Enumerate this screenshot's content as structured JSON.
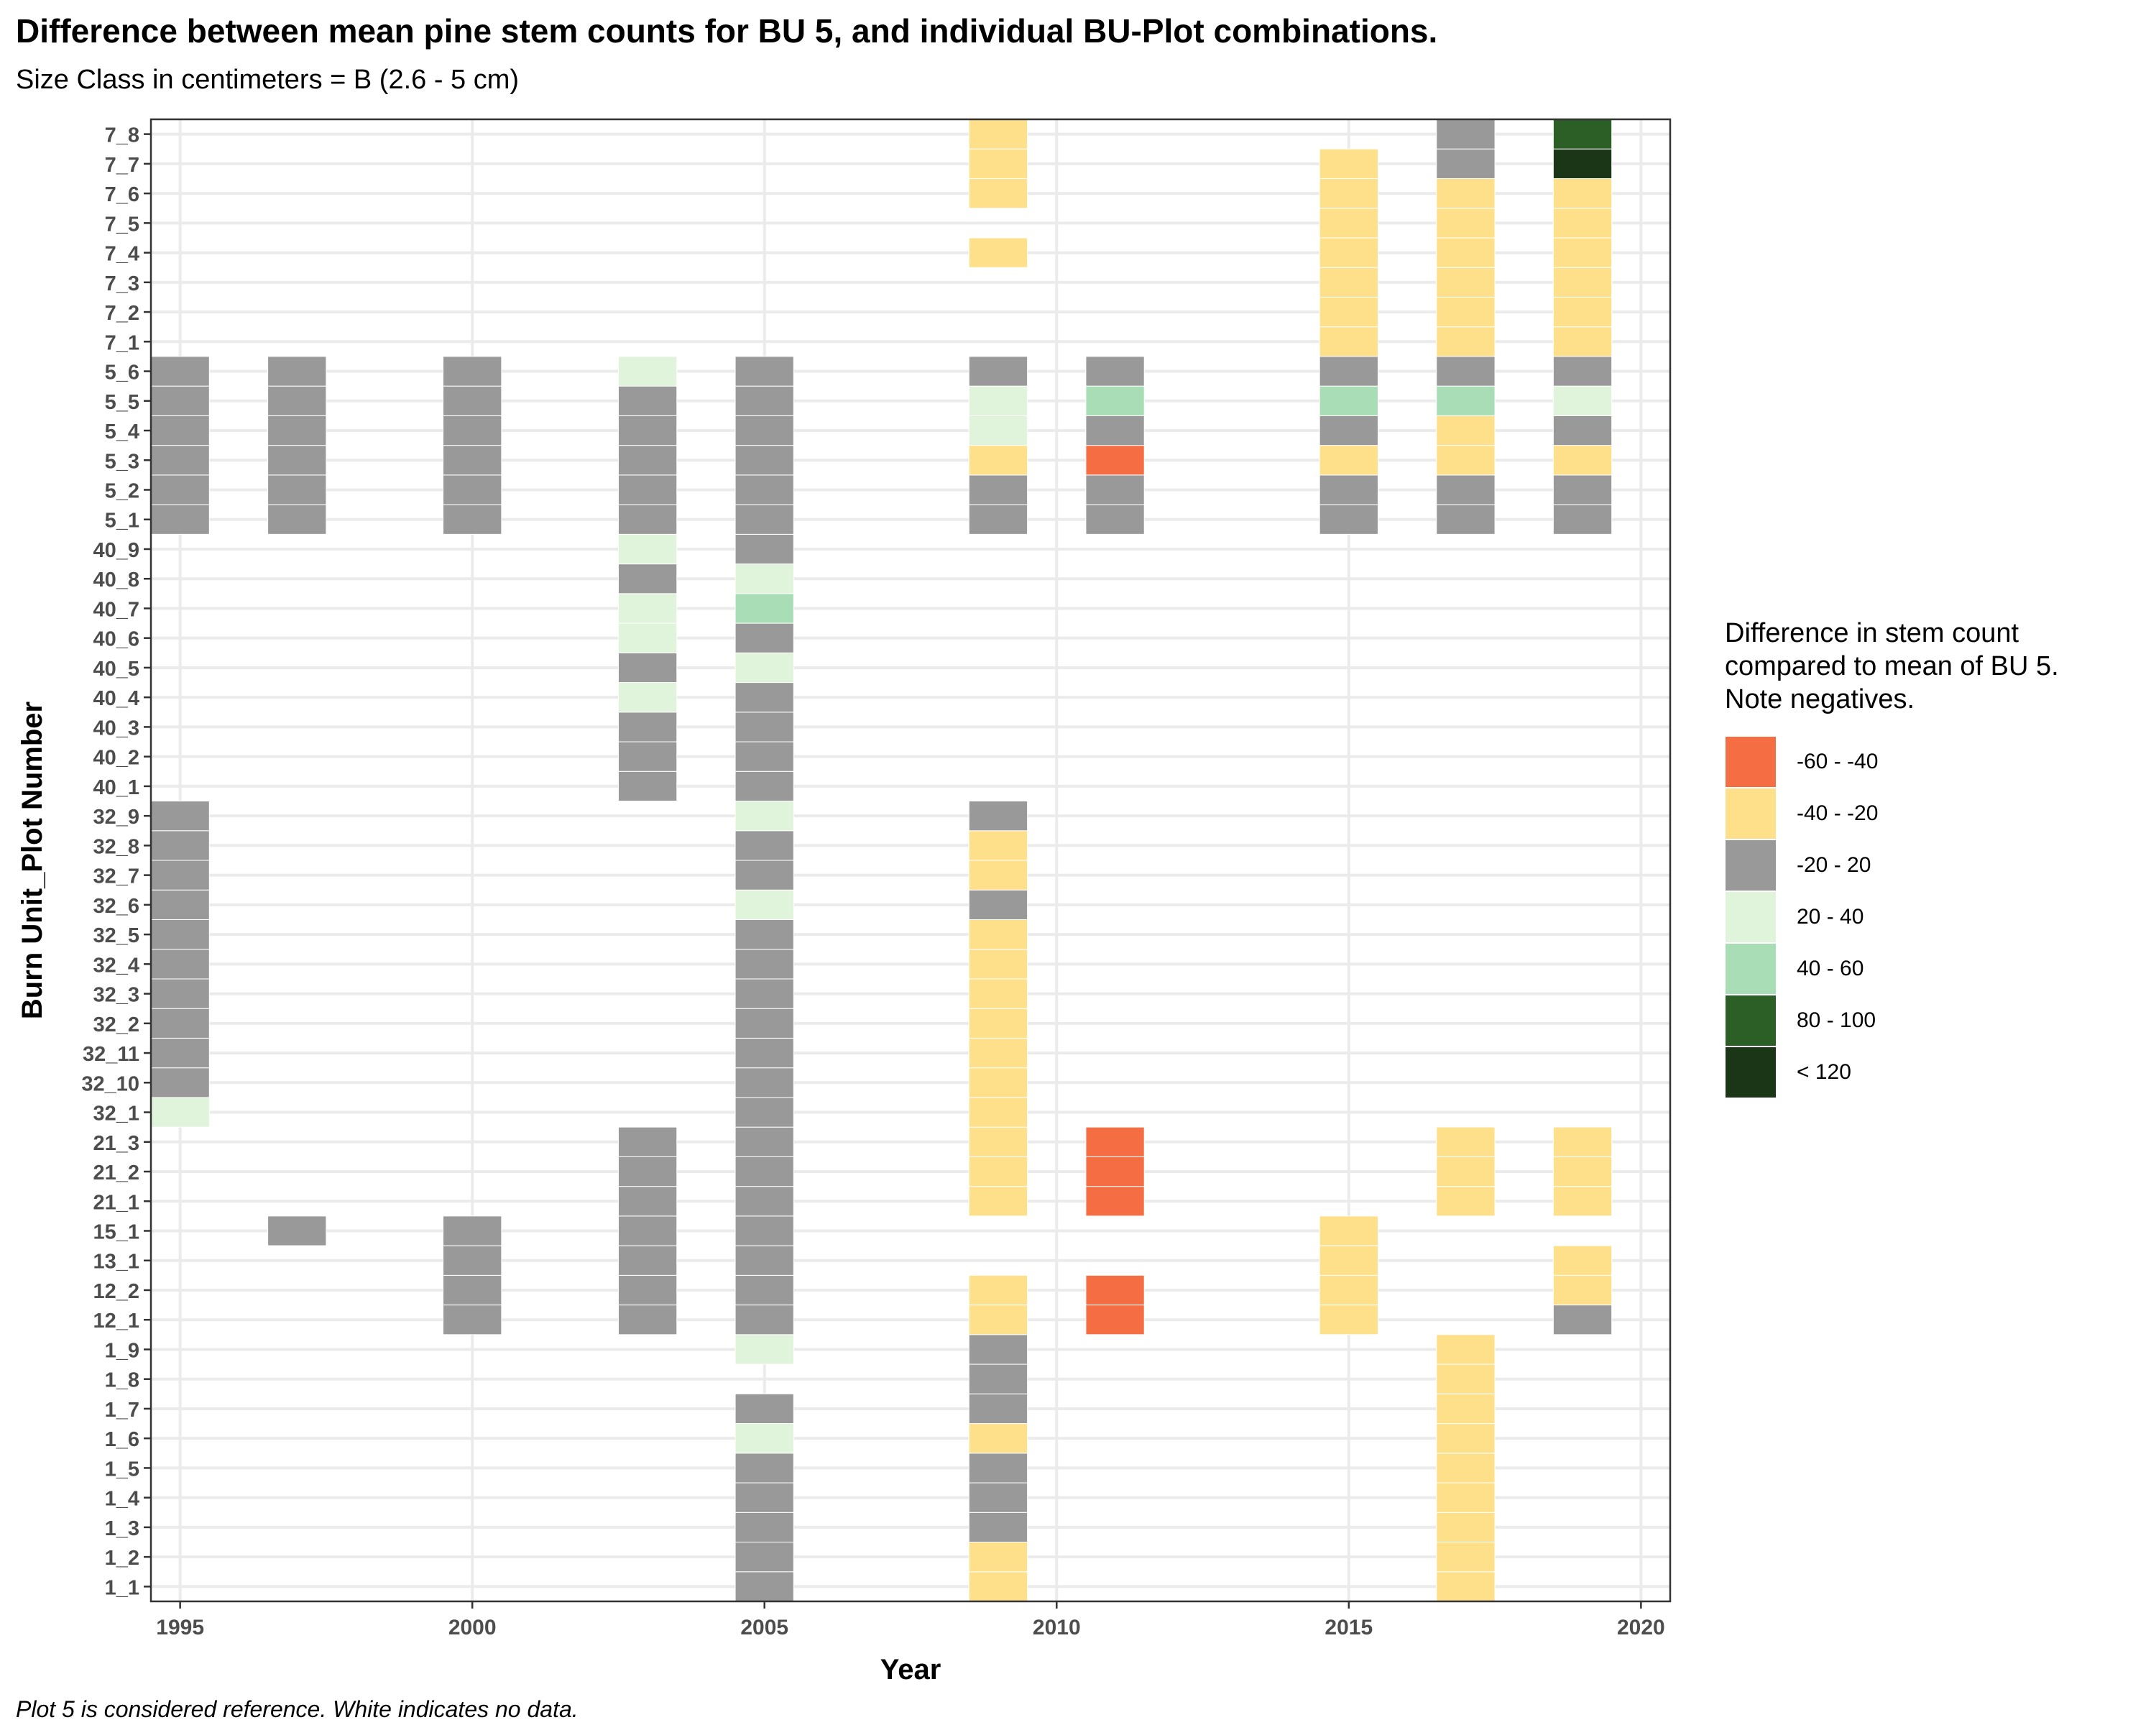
{
  "title": "Difference between mean pine stem counts for BU 5, and individual BU-Plot combinations.",
  "subtitle": "Size Class in centimeters = B (2.6 - 5 cm)",
  "caption": "Plot 5 is considered reference.  White indicates no data.",
  "chart_data": {
    "type": "heatmap",
    "xlabel": "Year",
    "ylabel": "Burn Unit_Plot Number",
    "xlim": [
      1994.5,
      2020.5
    ],
    "x_ticks": [
      1995,
      2000,
      2005,
      2010,
      2015,
      2020
    ],
    "grid": true,
    "legend_position": "right",
    "y_categories": [
      "1_1",
      "1_2",
      "1_3",
      "1_4",
      "1_5",
      "1_6",
      "1_7",
      "1_8",
      "1_9",
      "12_1",
      "12_2",
      "13_1",
      "15_1",
      "21_1",
      "21_2",
      "21_3",
      "32_1",
      "32_10",
      "32_11",
      "32_2",
      "32_3",
      "32_4",
      "32_5",
      "32_6",
      "32_7",
      "32_8",
      "32_9",
      "40_1",
      "40_2",
      "40_3",
      "40_4",
      "40_5",
      "40_6",
      "40_7",
      "40_8",
      "40_9",
      "5_1",
      "5_2",
      "5_3",
      "5_4",
      "5_5",
      "5_6",
      "7_1",
      "7_2",
      "7_3",
      "7_4",
      "7_5",
      "7_6",
      "7_7",
      "7_8"
    ],
    "legend": {
      "title_lines": [
        "Difference in stem count",
        "compared to mean of BU 5.",
        "Note negatives."
      ],
      "categories": [
        {
          "label": "-60 - -40",
          "color": "#f46d43"
        },
        {
          "label": "-40 - -20",
          "color": "#fee08b"
        },
        {
          "label": "-20 - 20",
          "color": "#999999"
        },
        {
          "label": "20 - 40",
          "color": "#e0f3db"
        },
        {
          "label": "40 - 60",
          "color": "#a8ddb5"
        },
        {
          "label": "80 - 100",
          "color": "#2b5f26"
        },
        {
          "label": "< 120",
          "color": "#1a3617"
        }
      ]
    },
    "columns": [
      {
        "year": 1995,
        "cells": [
          [
            "32_1",
            "20 - 40"
          ],
          [
            "32_10",
            "-20 - 20"
          ],
          [
            "32_11",
            "-20 - 20"
          ],
          [
            "32_2",
            "-20 - 20"
          ],
          [
            "32_3",
            "-20 - 20"
          ],
          [
            "32_4",
            "-20 - 20"
          ],
          [
            "32_5",
            "-20 - 20"
          ],
          [
            "32_6",
            "-20 - 20"
          ],
          [
            "32_7",
            "-20 - 20"
          ],
          [
            "32_8",
            "-20 - 20"
          ],
          [
            "32_9",
            "-20 - 20"
          ],
          [
            "5_1",
            "-20 - 20"
          ],
          [
            "5_2",
            "-20 - 20"
          ],
          [
            "5_3",
            "-20 - 20"
          ],
          [
            "5_4",
            "-20 - 20"
          ],
          [
            "5_5",
            "-20 - 20"
          ],
          [
            "5_6",
            "-20 - 20"
          ]
        ]
      },
      {
        "year": 1997,
        "cells": [
          [
            "15_1",
            "-20 - 20"
          ],
          [
            "5_1",
            "-20 - 20"
          ],
          [
            "5_2",
            "-20 - 20"
          ],
          [
            "5_3",
            "-20 - 20"
          ],
          [
            "5_4",
            "-20 - 20"
          ],
          [
            "5_5",
            "-20 - 20"
          ],
          [
            "5_6",
            "-20 - 20"
          ]
        ]
      },
      {
        "year": 2000,
        "cells": [
          [
            "12_1",
            "-20 - 20"
          ],
          [
            "12_2",
            "-20 - 20"
          ],
          [
            "13_1",
            "-20 - 20"
          ],
          [
            "15_1",
            "-20 - 20"
          ],
          [
            "5_1",
            "-20 - 20"
          ],
          [
            "5_2",
            "-20 - 20"
          ],
          [
            "5_3",
            "-20 - 20"
          ],
          [
            "5_4",
            "-20 - 20"
          ],
          [
            "5_5",
            "-20 - 20"
          ],
          [
            "5_6",
            "-20 - 20"
          ]
        ]
      },
      {
        "year": 2003,
        "cells": [
          [
            "12_1",
            "-20 - 20"
          ],
          [
            "12_2",
            "-20 - 20"
          ],
          [
            "13_1",
            "-20 - 20"
          ],
          [
            "15_1",
            "-20 - 20"
          ],
          [
            "21_1",
            "-20 - 20"
          ],
          [
            "21_2",
            "-20 - 20"
          ],
          [
            "21_3",
            "-20 - 20"
          ],
          [
            "40_1",
            "-20 - 20"
          ],
          [
            "40_2",
            "-20 - 20"
          ],
          [
            "40_3",
            "-20 - 20"
          ],
          [
            "40_4",
            "20 - 40"
          ],
          [
            "40_5",
            "-20 - 20"
          ],
          [
            "40_6",
            "20 - 40"
          ],
          [
            "40_7",
            "20 - 40"
          ],
          [
            "40_8",
            "-20 - 20"
          ],
          [
            "40_9",
            "20 - 40"
          ],
          [
            "5_1",
            "-20 - 20"
          ],
          [
            "5_2",
            "-20 - 20"
          ],
          [
            "5_3",
            "-20 - 20"
          ],
          [
            "5_4",
            "-20 - 20"
          ],
          [
            "5_5",
            "-20 - 20"
          ],
          [
            "5_6",
            "20 - 40"
          ]
        ]
      },
      {
        "year": 2005,
        "cells": [
          [
            "1_1",
            "-20 - 20"
          ],
          [
            "1_2",
            "-20 - 20"
          ],
          [
            "1_3",
            "-20 - 20"
          ],
          [
            "1_4",
            "-20 - 20"
          ],
          [
            "1_5",
            "-20 - 20"
          ],
          [
            "1_6",
            "20 - 40"
          ],
          [
            "1_7",
            "-20 - 20"
          ],
          [
            "1_9",
            "20 - 40"
          ],
          [
            "12_1",
            "-20 - 20"
          ],
          [
            "12_2",
            "-20 - 20"
          ],
          [
            "13_1",
            "-20 - 20"
          ],
          [
            "15_1",
            "-20 - 20"
          ],
          [
            "21_1",
            "-20 - 20"
          ],
          [
            "21_2",
            "-20 - 20"
          ],
          [
            "21_3",
            "-20 - 20"
          ],
          [
            "32_1",
            "-20 - 20"
          ],
          [
            "32_10",
            "-20 - 20"
          ],
          [
            "32_11",
            "-20 - 20"
          ],
          [
            "32_2",
            "-20 - 20"
          ],
          [
            "32_3",
            "-20 - 20"
          ],
          [
            "32_4",
            "-20 - 20"
          ],
          [
            "32_5",
            "-20 - 20"
          ],
          [
            "32_6",
            "20 - 40"
          ],
          [
            "32_7",
            "-20 - 20"
          ],
          [
            "32_8",
            "-20 - 20"
          ],
          [
            "32_9",
            "20 - 40"
          ],
          [
            "40_1",
            "-20 - 20"
          ],
          [
            "40_2",
            "-20 - 20"
          ],
          [
            "40_3",
            "-20 - 20"
          ],
          [
            "40_4",
            "-20 - 20"
          ],
          [
            "40_5",
            "20 - 40"
          ],
          [
            "40_6",
            "-20 - 20"
          ],
          [
            "40_7",
            "40 - 60"
          ],
          [
            "40_8",
            "20 - 40"
          ],
          [
            "40_9",
            "-20 - 20"
          ],
          [
            "5_1",
            "-20 - 20"
          ],
          [
            "5_2",
            "-20 - 20"
          ],
          [
            "5_3",
            "-20 - 20"
          ],
          [
            "5_4",
            "-20 - 20"
          ],
          [
            "5_5",
            "-20 - 20"
          ],
          [
            "5_6",
            "-20 - 20"
          ]
        ]
      },
      {
        "year": 2009,
        "cells": [
          [
            "1_1",
            "-40 - -20"
          ],
          [
            "1_2",
            "-40 - -20"
          ],
          [
            "1_3",
            "-20 - 20"
          ],
          [
            "1_4",
            "-20 - 20"
          ],
          [
            "1_5",
            "-20 - 20"
          ],
          [
            "1_6",
            "-40 - -20"
          ],
          [
            "1_7",
            "-20 - 20"
          ],
          [
            "1_8",
            "-20 - 20"
          ],
          [
            "1_9",
            "-20 - 20"
          ],
          [
            "12_1",
            "-40 - -20"
          ],
          [
            "12_2",
            "-40 - -20"
          ],
          [
            "21_1",
            "-40 - -20"
          ],
          [
            "21_2",
            "-40 - -20"
          ],
          [
            "21_3",
            "-40 - -20"
          ],
          [
            "32_1",
            "-40 - -20"
          ],
          [
            "32_10",
            "-40 - -20"
          ],
          [
            "32_11",
            "-40 - -20"
          ],
          [
            "32_2",
            "-40 - -20"
          ],
          [
            "32_3",
            "-40 - -20"
          ],
          [
            "32_4",
            "-40 - -20"
          ],
          [
            "32_5",
            "-40 - -20"
          ],
          [
            "32_6",
            "-20 - 20"
          ],
          [
            "32_7",
            "-40 - -20"
          ],
          [
            "32_8",
            "-40 - -20"
          ],
          [
            "32_9",
            "-20 - 20"
          ],
          [
            "5_1",
            "-20 - 20"
          ],
          [
            "5_2",
            "-20 - 20"
          ],
          [
            "5_3",
            "-40 - -20"
          ],
          [
            "5_4",
            "20 - 40"
          ],
          [
            "5_5",
            "20 - 40"
          ],
          [
            "5_6",
            "-20 - 20"
          ],
          [
            "7_4",
            "-40 - -20"
          ],
          [
            "7_6",
            "-40 - -20"
          ],
          [
            "7_7",
            "-40 - -20"
          ],
          [
            "7_8",
            "-40 - -20"
          ]
        ]
      },
      {
        "year": 2011,
        "cells": [
          [
            "12_1",
            "-60 - -40"
          ],
          [
            "12_2",
            "-60 - -40"
          ],
          [
            "21_1",
            "-60 - -40"
          ],
          [
            "21_2",
            "-60 - -40"
          ],
          [
            "21_3",
            "-60 - -40"
          ],
          [
            "5_1",
            "-20 - 20"
          ],
          [
            "5_2",
            "-20 - 20"
          ],
          [
            "5_3",
            "-60 - -40"
          ],
          [
            "5_4",
            "-20 - 20"
          ],
          [
            "5_5",
            "40 - 60"
          ],
          [
            "5_6",
            "-20 - 20"
          ]
        ]
      },
      {
        "year": 2015,
        "cells": [
          [
            "12_1",
            "-40 - -20"
          ],
          [
            "12_2",
            "-40 - -20"
          ],
          [
            "13_1",
            "-40 - -20"
          ],
          [
            "15_1",
            "-40 - -20"
          ],
          [
            "5_1",
            "-20 - 20"
          ],
          [
            "5_2",
            "-20 - 20"
          ],
          [
            "5_3",
            "-40 - -20"
          ],
          [
            "5_4",
            "-20 - 20"
          ],
          [
            "5_5",
            "40 - 60"
          ],
          [
            "5_6",
            "-20 - 20"
          ],
          [
            "7_1",
            "-40 - -20"
          ],
          [
            "7_2",
            "-40 - -20"
          ],
          [
            "7_3",
            "-40 - -20"
          ],
          [
            "7_4",
            "-40 - -20"
          ],
          [
            "7_5",
            "-40 - -20"
          ],
          [
            "7_6",
            "-40 - -20"
          ],
          [
            "7_7",
            "-40 - -20"
          ]
        ]
      },
      {
        "year": 2017,
        "cells": [
          [
            "1_1",
            "-40 - -20"
          ],
          [
            "1_2",
            "-40 - -20"
          ],
          [
            "1_3",
            "-40 - -20"
          ],
          [
            "1_4",
            "-40 - -20"
          ],
          [
            "1_5",
            "-40 - -20"
          ],
          [
            "1_6",
            "-40 - -20"
          ],
          [
            "1_7",
            "-40 - -20"
          ],
          [
            "1_8",
            "-40 - -20"
          ],
          [
            "1_9",
            "-40 - -20"
          ],
          [
            "21_1",
            "-40 - -20"
          ],
          [
            "21_2",
            "-40 - -20"
          ],
          [
            "21_3",
            "-40 - -20"
          ],
          [
            "5_1",
            "-20 - 20"
          ],
          [
            "5_2",
            "-20 - 20"
          ],
          [
            "5_3",
            "-40 - -20"
          ],
          [
            "5_4",
            "-40 - -20"
          ],
          [
            "5_5",
            "40 - 60"
          ],
          [
            "5_6",
            "-20 - 20"
          ],
          [
            "7_1",
            "-40 - -20"
          ],
          [
            "7_2",
            "-40 - -20"
          ],
          [
            "7_3",
            "-40 - -20"
          ],
          [
            "7_4",
            "-40 - -20"
          ],
          [
            "7_5",
            "-40 - -20"
          ],
          [
            "7_6",
            "-40 - -20"
          ],
          [
            "7_7",
            "-20 - 20"
          ],
          [
            "7_8",
            "-20 - 20"
          ]
        ]
      },
      {
        "year": 2019,
        "cells": [
          [
            "12_1",
            "-20 - 20"
          ],
          [
            "12_2",
            "-40 - -20"
          ],
          [
            "13_1",
            "-40 - -20"
          ],
          [
            "21_1",
            "-40 - -20"
          ],
          [
            "21_2",
            "-40 - -20"
          ],
          [
            "21_3",
            "-40 - -20"
          ],
          [
            "5_1",
            "-20 - 20"
          ],
          [
            "5_2",
            "-20 - 20"
          ],
          [
            "5_3",
            "-40 - -20"
          ],
          [
            "5_4",
            "-20 - 20"
          ],
          [
            "5_5",
            "20 - 40"
          ],
          [
            "5_6",
            "-20 - 20"
          ],
          [
            "7_1",
            "-40 - -20"
          ],
          [
            "7_2",
            "-40 - -20"
          ],
          [
            "7_3",
            "-40 - -20"
          ],
          [
            "7_4",
            "-40 - -20"
          ],
          [
            "7_5",
            "-40 - -20"
          ],
          [
            "7_6",
            "-40 - -20"
          ],
          [
            "7_7",
            "< 120"
          ],
          [
            "7_8",
            "80 - 100"
          ]
        ]
      }
    ]
  }
}
